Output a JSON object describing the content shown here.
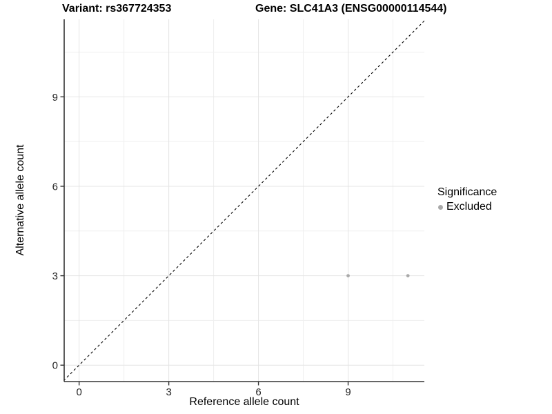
{
  "chart_data": {
    "type": "scatter",
    "titles": {
      "left": "Variant: rs367724353",
      "right": "Gene: SLC41A3 (ENSG00000114544)"
    },
    "xlabel": "Reference allele count",
    "ylabel": "Alternative allele count",
    "x_ticks": [
      0,
      3,
      6,
      9
    ],
    "y_ticks": [
      0,
      3,
      6,
      9
    ],
    "x_minor": [
      1.5,
      4.5,
      7.5,
      10.5
    ],
    "y_minor": [
      1.5,
      4.5,
      7.5,
      10.5
    ],
    "xlim": [
      -0.5,
      11.55
    ],
    "ylim": [
      -0.55,
      11.6
    ],
    "grid": true,
    "identity_line": {
      "style": "dashed",
      "color": "#000000",
      "slope": 1,
      "intercept": 0
    },
    "series": [
      {
        "name": "Excluded",
        "color": "#a9a9a9",
        "points": [
          [
            9,
            3
          ],
          [
            11,
            3
          ]
        ]
      }
    ],
    "legend": {
      "title": "Significance",
      "position": "right",
      "entries": [
        {
          "label": "Excluded",
          "color": "#a9a9a9",
          "marker": "circle-icon"
        }
      ]
    },
    "colors": {
      "grid_major": "#e4e4e4",
      "grid_minor": "#efefef",
      "axis_line": "#333333",
      "tick_label": "#262626"
    }
  }
}
